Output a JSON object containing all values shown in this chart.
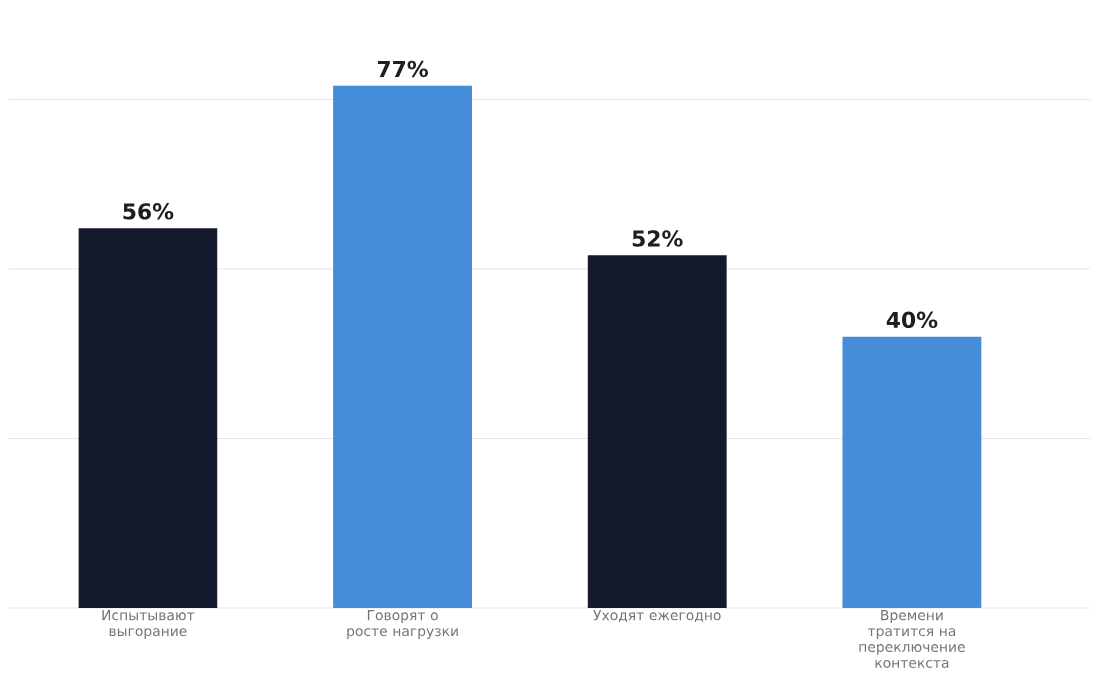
{
  "chart_data": {
    "type": "bar",
    "categories": [
      "Испытывают выгорание",
      "Говорят о росте нагрузки",
      "Уходят ежегодно",
      "Времени тратится на переключение контекста"
    ],
    "values": [
      56,
      77,
      52,
      40
    ],
    "colors": [
      "#141a2b",
      "#468dd9",
      "#141a2b",
      "#468dd9"
    ],
    "value_labels": [
      "56%",
      "77%",
      "52%",
      "40%"
    ],
    "yticks": [
      {
        "value": 0,
        "label": null
      },
      {
        "value": 25,
        "label": null
      },
      {
        "value": 50,
        "label": null
      },
      {
        "value": 75,
        "label": null
      }
    ],
    "grid": "y",
    "tick_labels": "x"
  }
}
